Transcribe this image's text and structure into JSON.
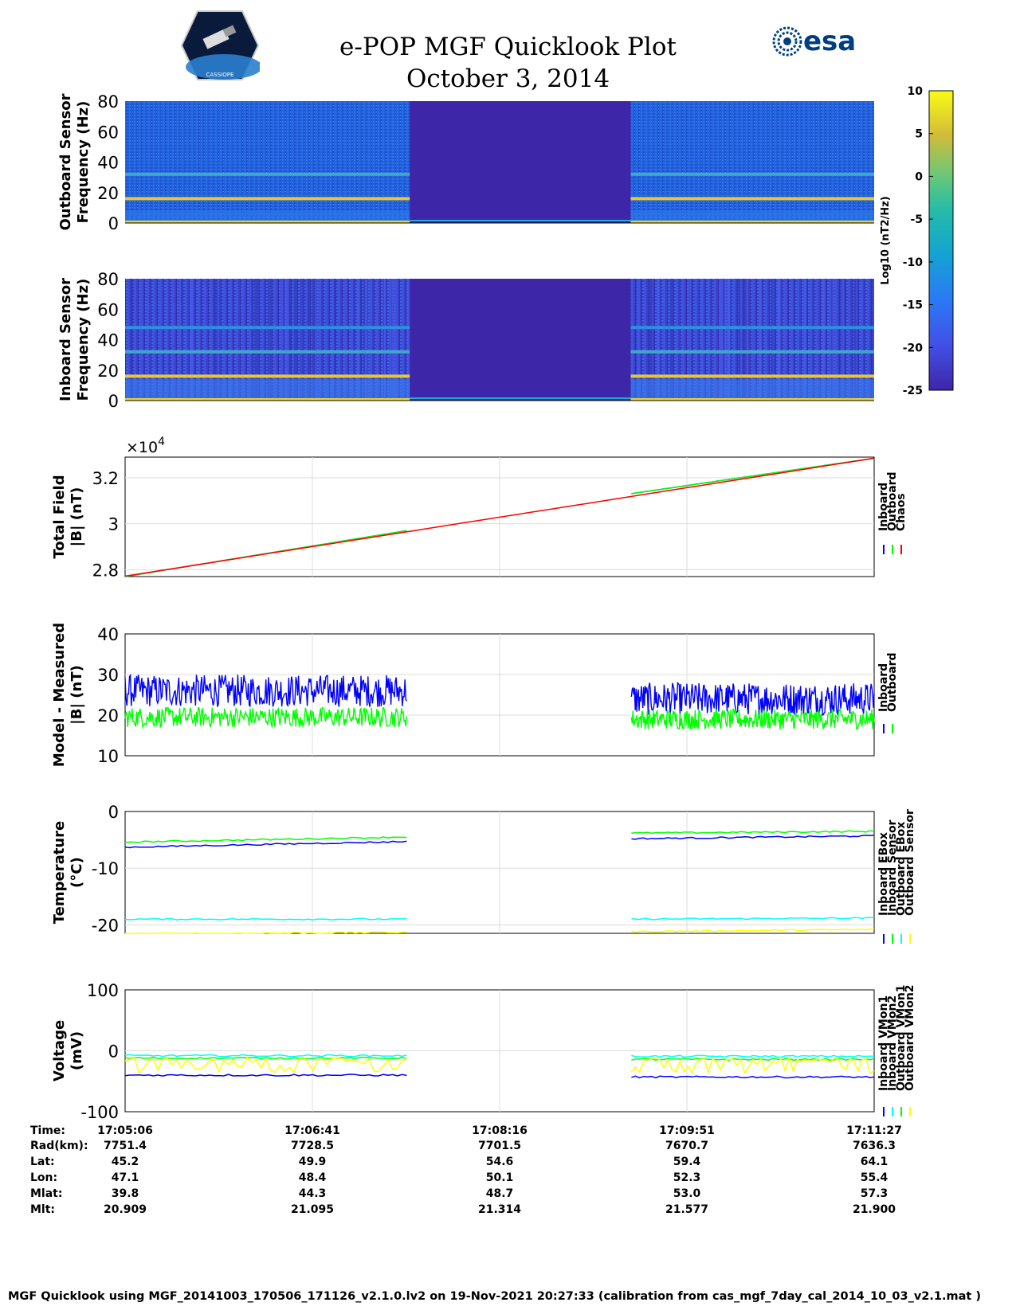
{
  "header": {
    "title_line1": "e-POP MGF Quicklook Plot",
    "title_line2": "October 3, 2014",
    "esa_logo_text": "esa",
    "cassiope_logo_text": "CASSIOPE"
  },
  "footer": {
    "text": "MGF Quicklook using MGF_20141003_170506_171126_v2.1.0.lv2 on 19-Nov-2021 20:27:33 (calibration from cas_mgf_7day_cal_2014_10_03_v2.1.mat )"
  },
  "colors": {
    "inboard": "#0000ff",
    "outboard": "#00ff00",
    "chaos": "#ff0000",
    "outboard_ebox": "#00ffff",
    "outboard_sensor": "#ffff00",
    "spectrogram_background": "#1e5fd8",
    "gap_fill": "#3e26a8"
  },
  "colorbar": {
    "ticks": [
      "10",
      "5",
      "0",
      "-5",
      "-10",
      "-15",
      "-20",
      "-25"
    ],
    "label": "Log10 (nT2/Hz)",
    "range": [
      -25,
      10
    ]
  },
  "chart_data": [
    {
      "type": "heatmap",
      "name": "outboard-spectrogram",
      "ylabel_line1": "Outboard Sensor",
      "ylabel_line2": "Frequency (Hz)",
      "yticks": [
        "80",
        "60",
        "40",
        "20",
        "0"
      ],
      "ylim": [
        0,
        80
      ],
      "bands_hz": [
        16,
        32
      ],
      "data_gap_fraction": [
        0.38,
        0.675
      ]
    },
    {
      "type": "heatmap",
      "name": "inboard-spectrogram",
      "ylabel_line1": "Inboard Sensor",
      "ylabel_line2": "Frequency (Hz)",
      "yticks": [
        "80",
        "60",
        "40",
        "20",
        "0"
      ],
      "ylim": [
        0,
        80
      ],
      "bands_hz": [
        16,
        32,
        48
      ],
      "data_gap_fraction": [
        0.38,
        0.675
      ]
    },
    {
      "type": "line",
      "name": "total-field",
      "ylabel_line1": "Total Field",
      "ylabel_line2": "|B| (nT)",
      "exponent": "×10",
      "exponent_power": "4",
      "yticks": [
        "3.2",
        "3",
        "2.8"
      ],
      "ytick_values": [
        3.2,
        3.0,
        2.8
      ],
      "ylim": [
        2.77,
        3.29
      ],
      "legend": [
        "Inboard",
        "Outboard",
        "Chaos"
      ],
      "series": [
        {
          "name": "Inboard",
          "color": "#0000ff",
          "segments": [
            [
              0,
              0.376,
              2.77,
              2.97
            ],
            [
              0.676,
              1.0,
              3.131,
              3.285
            ]
          ]
        },
        {
          "name": "Outboard",
          "color": "#00ff00",
          "segments": [
            [
              0,
              0.376,
              2.77,
              2.97
            ],
            [
              0.676,
              1.0,
              3.131,
              3.285
            ]
          ]
        },
        {
          "name": "Chaos",
          "color": "#ff0000",
          "segments": [
            [
              0,
              1.0,
              2.772,
              3.285
            ]
          ]
        }
      ]
    },
    {
      "type": "line",
      "name": "model-minus-measured",
      "ylabel_line1": "Model - Measured",
      "ylabel_line2": "|B| (nT)",
      "yticks": [
        "40",
        "30",
        "20",
        "10"
      ],
      "ytick_values": [
        40,
        30,
        20,
        10
      ],
      "ylim": [
        10,
        40
      ],
      "legend": [
        "Inboard",
        "Outboard"
      ],
      "series": [
        {
          "name": "Inboard",
          "color": "#0000ff",
          "segments": [
            [
              0,
              0.376,
              26
            ],
            [
              0.676,
              1.0,
              24
            ]
          ],
          "noise": 4
        },
        {
          "name": "Outboard",
          "color": "#00ff00",
          "segments": [
            [
              0,
              0.376,
              19.5
            ],
            [
              0.676,
              1.0,
              19
            ]
          ],
          "noise": 2.5
        }
      ]
    },
    {
      "type": "line",
      "name": "temperature",
      "ylabel_line1": "Temperature",
      "ylabel_line2": "(°C)",
      "yticks": [
        "0",
        "-10",
        "-20"
      ],
      "ytick_values": [
        0,
        -10,
        -20
      ],
      "ylim": [
        -21.5,
        0
      ],
      "legend": [
        "Inboard EBox",
        "Inboard Sensor",
        "Outboard EBox",
        "Outboard Sensor"
      ],
      "series": [
        {
          "name": "Inboard EBox",
          "color": "#0000ff",
          "segments": [
            [
              0,
              0.376,
              -6.3,
              -5.3
            ],
            [
              0.676,
              1.0,
              -4.8,
              -4.3
            ]
          ]
        },
        {
          "name": "Inboard Sensor",
          "color": "#00ff00",
          "segments": [
            [
              0,
              0.376,
              -5.4,
              -4.5
            ],
            [
              0.676,
              1.0,
              -3.8,
              -3.5
            ]
          ]
        },
        {
          "name": "Outboard EBox",
          "color": "#00ffff",
          "segments": [
            [
              0,
              0.376,
              -19.0,
              -19.0
            ],
            [
              0.676,
              1.0,
              -19.0,
              -18.8
            ]
          ]
        },
        {
          "name": "Outboard Sensor",
          "color": "#ffff00",
          "segments": [
            [
              0,
              0.376,
              -21.6,
              -21.3
            ],
            [
              0.676,
              1.0,
              -21.2,
              -20.8
            ]
          ]
        }
      ]
    },
    {
      "type": "line",
      "name": "voltage",
      "ylabel_line1": "Voltage",
      "ylabel_line2": "(mV)",
      "yticks": [
        "100",
        "0",
        "-100"
      ],
      "ytick_values": [
        100,
        0,
        -100
      ],
      "ylim": [
        -100,
        100
      ],
      "legend": [
        "Inboard VMon1",
        "Inboard VMon2",
        "Outboard VMon1",
        "Outboard VMon2"
      ],
      "series": [
        {
          "name": "Inboard VMon1",
          "color": "#0000ff",
          "segments": [
            [
              0,
              0.376,
              -40
            ],
            [
              0.676,
              1.0,
              -43
            ]
          ]
        },
        {
          "name": "Inboard VMon2",
          "color": "#00ffff",
          "segments": [
            [
              0,
              0.376,
              -8
            ],
            [
              0.676,
              1.0,
              -9
            ]
          ]
        },
        {
          "name": "Outboard VMon1",
          "color": "#00ff00",
          "segments": [
            [
              0,
              0.376,
              -12
            ],
            [
              0.676,
              1.0,
              -14
            ]
          ]
        },
        {
          "name": "Outboard VMon2",
          "color": "#ffff00",
          "segments": [
            [
              0,
              0.376,
              -18
            ],
            [
              0.676,
              1.0,
              -18
            ]
          ]
        }
      ]
    }
  ],
  "x_axis": {
    "row_labels": [
      "Time:",
      "Rad(km):",
      "Lat:",
      "Lon:",
      "Mlat:",
      "Mlt:"
    ],
    "columns": [
      [
        "17:05:06",
        "7751.4",
        "45.2",
        "47.1",
        "39.8",
        "20.909"
      ],
      [
        "17:06:41",
        "7728.5",
        "49.9",
        "48.4",
        "44.3",
        "21.095"
      ],
      [
        "17:08:16",
        "7701.5",
        "54.6",
        "50.1",
        "48.7",
        "21.314"
      ],
      [
        "17:09:51",
        "7670.7",
        "59.4",
        "52.3",
        "53.0",
        "21.577"
      ],
      [
        "17:11:27",
        "7636.3",
        "64.1",
        "55.4",
        "57.3",
        "21.900"
      ]
    ]
  }
}
